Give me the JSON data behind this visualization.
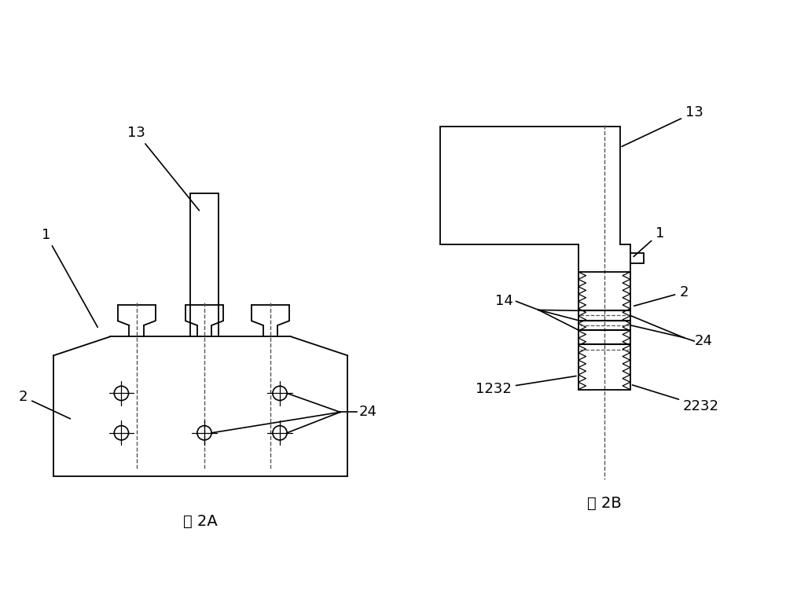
{
  "bg_color": "#ffffff",
  "line_color": "#000000",
  "fig_width": 10.0,
  "fig_height": 7.8,
  "title_2a": "图 2A",
  "title_2b": "图 2B"
}
